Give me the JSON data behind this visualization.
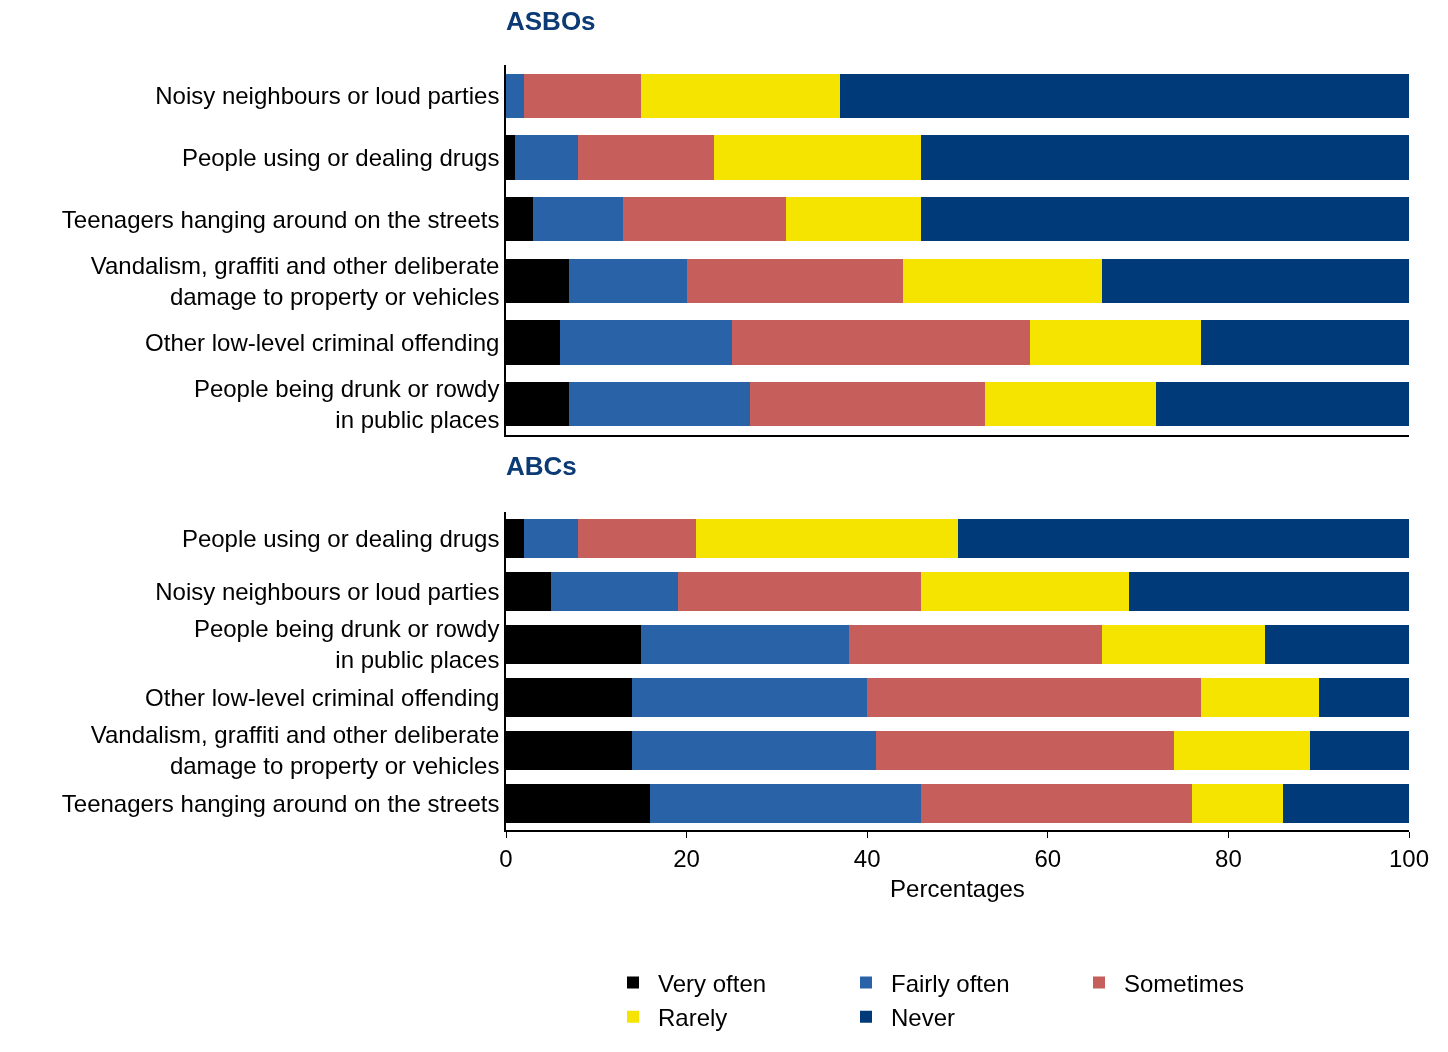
{
  "chart_data": [
    {
      "type": "bar",
      "title": "ASBOs",
      "orientation": "horizontal",
      "stacked": true,
      "grid": false,
      "legend": false,
      "tick_labels": "y",
      "xlim": [
        0,
        100
      ],
      "categories": [
        "Noisy neighbours or loud parties",
        "People using or dealing drugs",
        "Teenagers hanging around on the streets",
        "Vandalism, graffiti and other deliberate\ndamage to property or vehicles",
        "Other low-level criminal offending",
        "People being drunk or rowdy\nin public places"
      ],
      "series": [
        {
          "color": "#000000",
          "values": [
            0,
            1,
            3,
            7,
            6,
            7
          ]
        },
        {
          "color": "#2a62a8",
          "values": [
            2,
            7,
            10,
            13,
            19,
            20
          ]
        },
        {
          "color": "#c65e5c",
          "values": [
            13,
            15,
            18,
            24,
            33,
            26
          ]
        },
        {
          "color": "#f5e400",
          "values": [
            22,
            23,
            15,
            22,
            19,
            19
          ]
        },
        {
          "color": "#003a78",
          "values": [
            63,
            54,
            54,
            34,
            23,
            28
          ]
        }
      ]
    },
    {
      "type": "bar",
      "title": "ABCs",
      "orientation": "horizontal",
      "stacked": true,
      "grid": false,
      "legend": "bottom",
      "xlabel": "Percentages",
      "xlim": [
        0,
        100
      ],
      "xticks": [
        0,
        20,
        40,
        60,
        80,
        100
      ],
      "categories": [
        "People using or dealing drugs",
        "Noisy neighbours or loud parties",
        "People being drunk or rowdy\nin public places",
        "Other low-level criminal offending",
        "Vandalism, graffiti and other deliberate\ndamage to property or vehicles",
        "Teenagers hanging around on the streets"
      ],
      "series": [
        {
          "name": "Very often",
          "color": "#000000",
          "values": [
            2,
            5,
            15,
            14,
            14,
            16
          ]
        },
        {
          "name": "Fairly often",
          "color": "#2a62a8",
          "values": [
            6,
            14,
            23,
            26,
            27,
            30
          ]
        },
        {
          "name": "Sometimes",
          "color": "#c65e5c",
          "values": [
            13,
            27,
            28,
            37,
            33,
            30
          ]
        },
        {
          "name": "Rarely",
          "color": "#f5e400",
          "values": [
            29,
            23,
            18,
            13,
            15,
            10
          ]
        },
        {
          "name": "Never",
          "color": "#003a78",
          "values": [
            50,
            31,
            16,
            10,
            11,
            14
          ]
        }
      ]
    }
  ]
}
